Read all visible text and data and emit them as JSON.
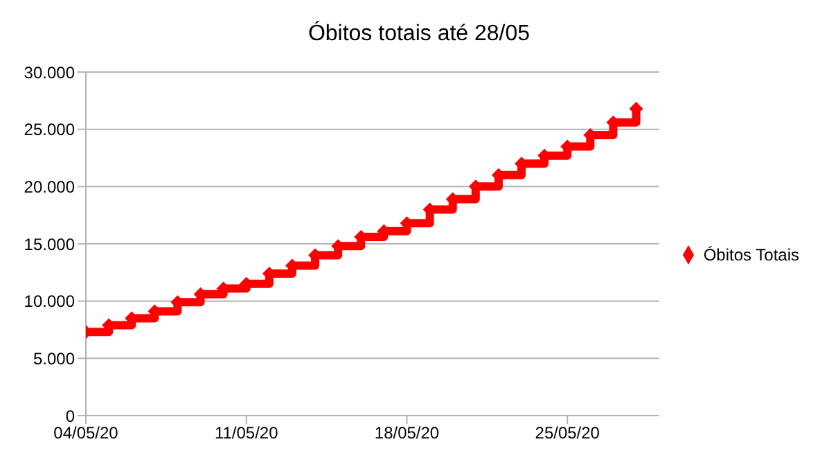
{
  "chart_data": {
    "type": "step",
    "title": "Óbitos totais até 28/05",
    "x": [
      "--05-04",
      "--05-05",
      "--05-06",
      "--05-07",
      "--05-08",
      "--05-09",
      "--05-10",
      "--05-11",
      "--05-12",
      "--05-13",
      "--05-14",
      "--05-15",
      "--05-16",
      "--05-17",
      "--05-18",
      "--05-19",
      "--05-20",
      "--05-21",
      "--05-22",
      "--05-23",
      "--05-24",
      "--05-25",
      "--05-26",
      "--05-27",
      "--05-28"
    ],
    "series": [
      {
        "name": "Óbitos Totais",
        "color": "#ff0000",
        "values": [
          7300,
          7900,
          8500,
          9100,
          9900,
          10600,
          11100,
          11500,
          12400,
          13100,
          14000,
          14800,
          15600,
          16100,
          16800,
          18000,
          18900,
          20000,
          21000,
          22000,
          22700,
          23500,
          24500,
          25600,
          26800
        ]
      }
    ],
    "xlim": [
      "--05-04",
      "--05-29"
    ],
    "xticks": [
      {
        "value": "--05-04",
        "label": "04/05/20"
      },
      {
        "value": "--05-11",
        "label": "11/05/20"
      },
      {
        "value": "--05-18",
        "label": "18/05/20"
      },
      {
        "value": "--05-25",
        "label": "25/05/20"
      }
    ],
    "ylim": [
      0,
      30000
    ],
    "yticks": [
      {
        "value": 0,
        "label": "0"
      },
      {
        "value": 5000,
        "label": "5.000"
      },
      {
        "value": 10000,
        "label": "10.000"
      },
      {
        "value": 15000,
        "label": "15.000"
      },
      {
        "value": 20000,
        "label": "20.000"
      },
      {
        "value": 25000,
        "label": "25.000"
      },
      {
        "value": 30000,
        "label": "30.000"
      }
    ],
    "grid": "y",
    "legend": "right",
    "marker": "diamond",
    "line_style": "solid"
  }
}
